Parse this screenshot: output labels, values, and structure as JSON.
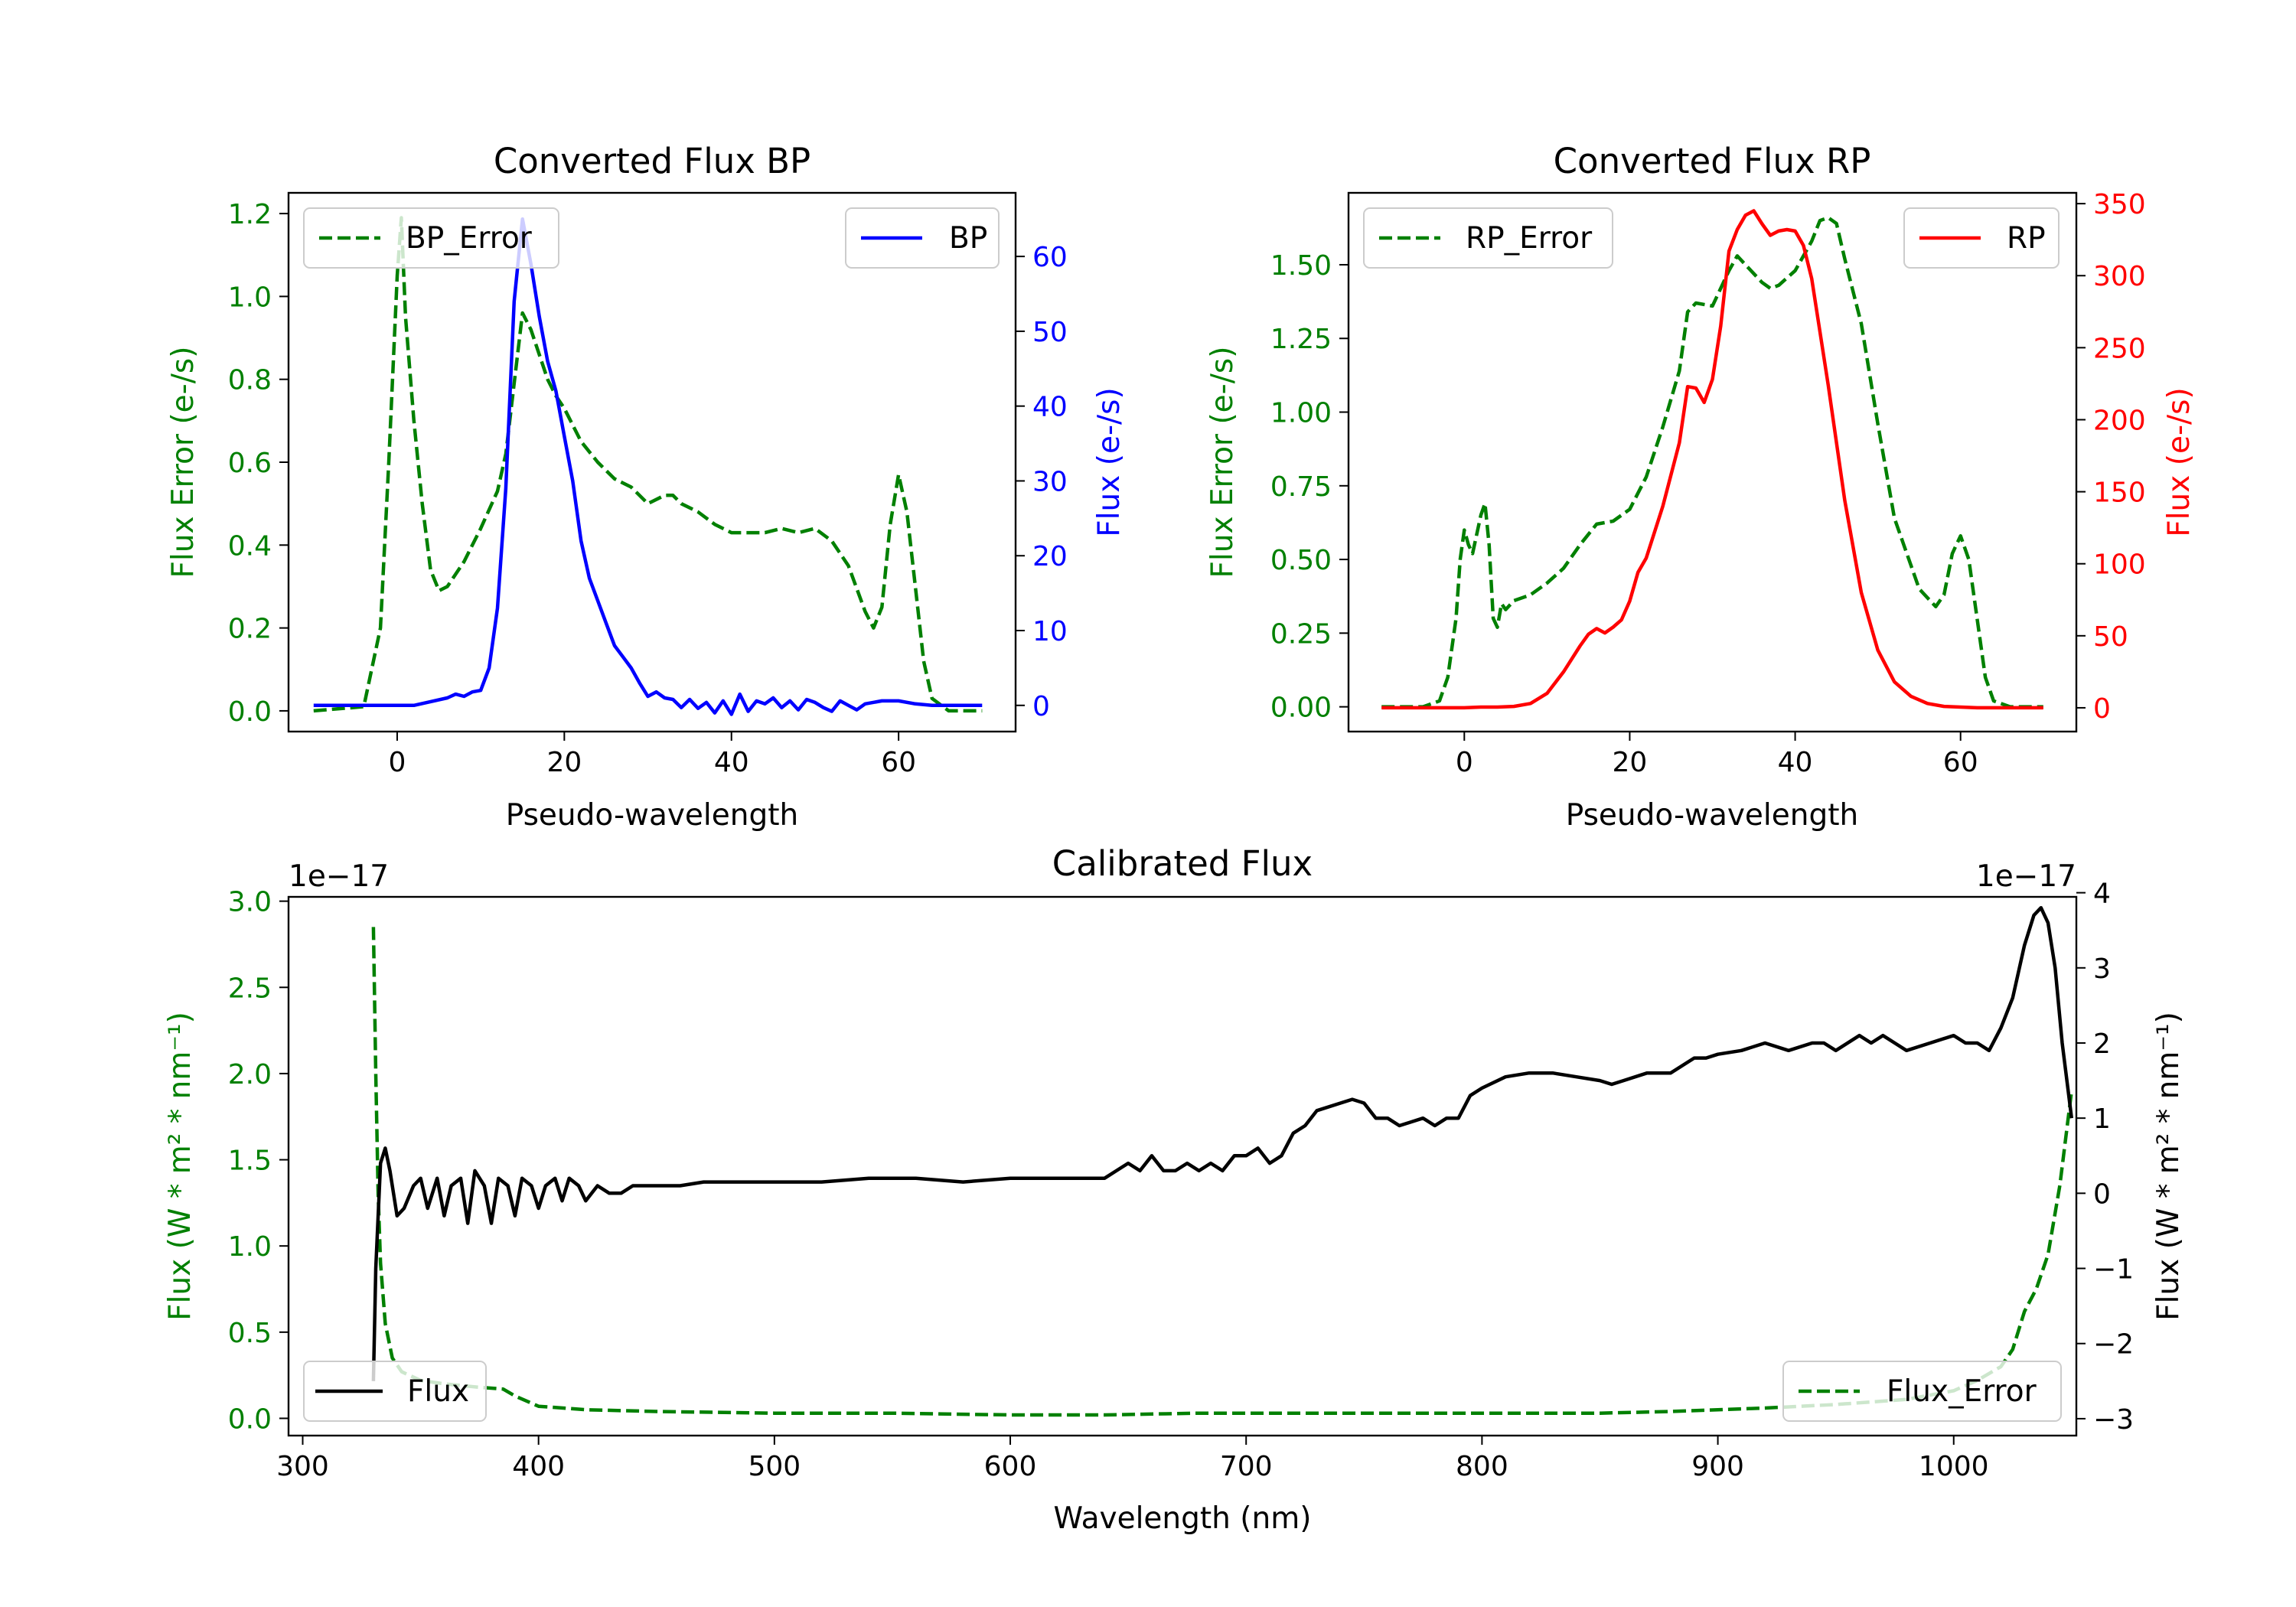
{
  "colors": {
    "bp": "#0000ff",
    "rp": "#ff0000",
    "error": "#008000",
    "flux": "#000000",
    "axes": "#000000"
  },
  "chart_data": [
    {
      "type": "line",
      "title": "Converted Flux BP",
      "xlabel": "Pseudo-wavelength",
      "ylabel_left": "Flux Error (e-/s)",
      "ylabel_right": "Flux (e-/s)",
      "xlim": [
        -13,
        74
      ],
      "ylim_left": [
        -0.05,
        1.25
      ],
      "ylim_right": [
        -3.5,
        68.5
      ],
      "xticks": [
        0,
        20,
        40,
        60
      ],
      "yticks_left": [
        0.0,
        0.2,
        0.4,
        0.6,
        0.8,
        1.0,
        1.2
      ],
      "yticks_left_labels": [
        "0.0",
        "0.2",
        "0.4",
        "0.6",
        "0.8",
        "1.0",
        "1.2"
      ],
      "yticks_right": [
        0,
        10,
        20,
        30,
        40,
        50,
        60
      ],
      "yticks_right_labels": [
        "0",
        "10",
        "20",
        "30",
        "40",
        "50",
        "60"
      ],
      "legend_left": "BP_Error",
      "legend_right": "BP",
      "series": [
        {
          "name": "BP_Error",
          "axis": "left",
          "style": "dashed",
          "color_key": "error",
          "x": [
            -10,
            -4,
            -2,
            -1,
            0,
            0.5,
            1,
            2,
            3,
            4,
            5,
            6,
            8,
            10,
            12,
            13,
            14,
            15,
            16,
            17,
            18,
            19,
            20,
            22,
            24,
            26,
            28,
            30,
            32,
            33,
            34,
            36,
            38,
            40,
            42,
            44,
            46,
            48,
            50,
            52,
            54,
            56,
            57,
            58,
            59,
            60,
            61,
            62,
            63,
            64,
            66,
            70
          ],
          "y": [
            0.0,
            0.01,
            0.2,
            0.6,
            1.05,
            1.19,
            0.95,
            0.7,
            0.5,
            0.34,
            0.29,
            0.3,
            0.36,
            0.44,
            0.53,
            0.62,
            0.79,
            0.96,
            0.92,
            0.86,
            0.8,
            0.76,
            0.73,
            0.65,
            0.6,
            0.56,
            0.54,
            0.5,
            0.52,
            0.52,
            0.5,
            0.48,
            0.45,
            0.43,
            0.43,
            0.43,
            0.44,
            0.43,
            0.44,
            0.41,
            0.35,
            0.24,
            0.2,
            0.25,
            0.45,
            0.57,
            0.48,
            0.3,
            0.12,
            0.03,
            0.0,
            0.0
          ]
        },
        {
          "name": "BP",
          "axis": "right",
          "style": "solid",
          "color_key": "bp",
          "x": [
            -10,
            -6,
            -2,
            0,
            2,
            4,
            6,
            7,
            8,
            9,
            10,
            11,
            12,
            13,
            14,
            15,
            16,
            17,
            18,
            19,
            20,
            21,
            22,
            23,
            24,
            25,
            26,
            27,
            28,
            29,
            30,
            31,
            32,
            33,
            34,
            35,
            36,
            37,
            38,
            39,
            40,
            41,
            42,
            43,
            44,
            45,
            46,
            47,
            48,
            49,
            50,
            51,
            52,
            53,
            54,
            55,
            56,
            58,
            60,
            62,
            64,
            66,
            68,
            70
          ],
          "y": [
            0,
            0,
            0,
            0,
            0,
            0.5,
            1,
            1.5,
            1.2,
            1.8,
            2,
            5,
            13,
            29,
            54,
            65,
            59,
            52,
            46,
            42,
            36,
            30,
            22,
            17,
            14,
            11,
            8,
            6.5,
            5,
            3,
            1.2,
            1.8,
            1,
            0.8,
            -0.3,
            0.8,
            -0.4,
            0.4,
            -1,
            0.6,
            -1.2,
            1.5,
            -0.8,
            0.6,
            0.2,
            1,
            -0.3,
            0.6,
            -0.6,
            0.8,
            0.4,
            -0.3,
            -0.8,
            0.6,
            0,
            -0.6,
            0.2,
            0.6,
            0.6,
            0.2,
            0,
            0,
            0,
            0
          ]
        }
      ]
    },
    {
      "type": "line",
      "title": "Converted Flux RP",
      "xlabel": "Pseudo-wavelength",
      "ylabel_left": "Flux Error (e-/s)",
      "ylabel_right": "Flux (e-/s)",
      "xlim": [
        -14,
        74
      ],
      "ylim_left": [
        -0.084,
        1.744
      ],
      "ylim_right": [
        -16.5,
        357.5
      ],
      "xticks": [
        0,
        20,
        40,
        60
      ],
      "yticks_left": [
        0.0,
        0.25,
        0.5,
        0.75,
        1.0,
        1.25,
        1.5
      ],
      "yticks_left_labels": [
        "0.00",
        "0.25",
        "0.50",
        "0.75",
        "1.00",
        "1.25",
        "1.50"
      ],
      "yticks_right": [
        0,
        50,
        100,
        150,
        200,
        250,
        300,
        350
      ],
      "yticks_right_labels": [
        "0",
        "50",
        "100",
        "150",
        "200",
        "250",
        "300",
        "350"
      ],
      "legend_left": "RP_Error",
      "legend_right": "RP",
      "series": [
        {
          "name": "RP_Error",
          "axis": "left",
          "style": "dashed",
          "color_key": "error",
          "x": [
            -10,
            -5,
            -3,
            -2,
            -1,
            -0.5,
            0,
            0.5,
            1,
            2,
            2.5,
            3,
            3.5,
            4,
            4.5,
            5,
            6,
            8,
            10,
            12,
            14,
            16,
            18,
            20,
            22,
            24,
            26,
            27,
            28,
            30,
            32,
            33,
            34,
            36,
            37,
            38,
            40,
            42,
            43,
            44,
            45,
            46,
            48,
            50,
            52,
            54,
            55,
            56,
            57,
            58,
            59,
            60,
            61,
            62,
            63,
            64,
            66,
            70
          ],
          "y": [
            0.0,
            0.0,
            0.02,
            0.1,
            0.3,
            0.5,
            0.6,
            0.55,
            0.52,
            0.65,
            0.69,
            0.55,
            0.3,
            0.27,
            0.35,
            0.33,
            0.36,
            0.38,
            0.42,
            0.47,
            0.55,
            0.62,
            0.63,
            0.67,
            0.78,
            0.95,
            1.14,
            1.34,
            1.37,
            1.36,
            1.48,
            1.53,
            1.5,
            1.44,
            1.42,
            1.43,
            1.48,
            1.58,
            1.65,
            1.66,
            1.64,
            1.52,
            1.3,
            0.96,
            0.64,
            0.48,
            0.4,
            0.37,
            0.34,
            0.38,
            0.52,
            0.58,
            0.5,
            0.3,
            0.1,
            0.02,
            0.0,
            0.0
          ]
        },
        {
          "name": "RP",
          "axis": "right",
          "style": "solid",
          "color_key": "rp",
          "x": [
            -10,
            -5,
            0,
            2,
            4,
            6,
            8,
            10,
            12,
            14,
            15,
            16,
            17,
            18,
            19,
            20,
            21,
            22,
            24,
            26,
            27,
            28,
            29,
            30,
            31,
            32,
            33,
            34,
            35,
            36,
            37,
            38,
            39,
            40,
            41,
            42,
            44,
            46,
            48,
            50,
            52,
            54,
            56,
            58,
            60,
            62,
            64,
            66,
            70
          ],
          "y": [
            0,
            0,
            0,
            0.5,
            0.5,
            1,
            3,
            10,
            25,
            43,
            51,
            55,
            52,
            56,
            61,
            74,
            94,
            104,
            140,
            184,
            223,
            222,
            212,
            228,
            265,
            317,
            332,
            342,
            345,
            336,
            328,
            331,
            332,
            331,
            321,
            298,
            224,
            144,
            80,
            40,
            18,
            8,
            3,
            1,
            0.5,
            0,
            0,
            0,
            0
          ]
        }
      ]
    },
    {
      "type": "line",
      "title": "Calibrated Flux",
      "xlabel": "Wavelength (nm)",
      "ylabel_left": "Flux (W * m² * nm⁻¹)",
      "ylabel_right": "Flux (W * m² * nm⁻¹)",
      "offset_left": "1e−17",
      "offset_right": "1e−17",
      "xlim": [
        294,
        1052
      ],
      "ylim_left": [
        -0.1,
        3.025
      ],
      "ylim_right": [
        -3.225,
        3.945
      ],
      "xticks": [
        300,
        400,
        500,
        600,
        700,
        800,
        900,
        1000
      ],
      "yticks_left": [
        0.0,
        0.5,
        1.0,
        1.5,
        2.0,
        2.5,
        3.0
      ],
      "yticks_left_labels": [
        "0.0",
        "0.5",
        "1.0",
        "1.5",
        "2.0",
        "2.5",
        "3.0"
      ],
      "yticks_right": [
        -3,
        -2,
        -1,
        0,
        1,
        2,
        3,
        4
      ],
      "yticks_right_labels": [
        "−3",
        "−2",
        "−1",
        "0",
        "1",
        "2",
        "3",
        "4"
      ],
      "legend_left": "Flux",
      "legend_right": "Flux_Error",
      "series": [
        {
          "name": "Flux_Error",
          "axis": "left",
          "style": "dashed",
          "color_key": "error",
          "x": [
            330,
            331,
            332,
            333,
            335,
            338,
            342,
            350,
            360,
            375,
            385,
            390,
            400,
            420,
            450,
            500,
            550,
            600,
            640,
            680,
            700,
            750,
            800,
            850,
            880,
            900,
            920,
            950,
            980,
            1000,
            1010,
            1020,
            1025,
            1030,
            1035,
            1040,
            1045,
            1050
          ],
          "y": [
            2.85,
            2.0,
            1.3,
            0.9,
            0.55,
            0.35,
            0.27,
            0.22,
            0.2,
            0.18,
            0.17,
            0.13,
            0.07,
            0.05,
            0.04,
            0.03,
            0.03,
            0.02,
            0.02,
            0.03,
            0.03,
            0.03,
            0.03,
            0.03,
            0.04,
            0.05,
            0.06,
            0.08,
            0.11,
            0.16,
            0.22,
            0.3,
            0.4,
            0.62,
            0.75,
            0.95,
            1.35,
            1.9
          ]
        },
        {
          "name": "Flux",
          "axis": "right",
          "style": "solid",
          "color_key": "flux",
          "x": [
            330,
            331,
            333,
            335,
            337,
            340,
            343,
            347,
            350,
            353,
            357,
            360,
            363,
            367,
            370,
            373,
            377,
            380,
            383,
            387,
            390,
            393,
            397,
            400,
            403,
            407,
            410,
            413,
            417,
            420,
            425,
            430,
            435,
            440,
            450,
            460,
            470,
            480,
            500,
            520,
            540,
            560,
            580,
            600,
            620,
            640,
            645,
            650,
            655,
            660,
            665,
            670,
            675,
            680,
            685,
            690,
            695,
            700,
            705,
            710,
            715,
            720,
            725,
            730,
            740,
            745,
            750,
            755,
            760,
            765,
            770,
            775,
            780,
            785,
            790,
            795,
            800,
            810,
            820,
            830,
            840,
            850,
            855,
            860,
            870,
            880,
            890,
            895,
            900,
            910,
            920,
            930,
            940,
            945,
            950,
            960,
            965,
            970,
            975,
            980,
            990,
            1000,
            1005,
            1010,
            1015,
            1020,
            1025,
            1030,
            1034,
            1037,
            1040,
            1043,
            1046,
            1050
          ],
          "y": [
            -2.5,
            -1,
            0.4,
            0.6,
            0.3,
            -0.3,
            -0.2,
            0.1,
            0.2,
            -0.2,
            0.2,
            -0.3,
            0.1,
            0.2,
            -0.4,
            0.3,
            0.1,
            -0.4,
            0.2,
            0.1,
            -0.3,
            0.2,
            0.1,
            -0.2,
            0.1,
            0.2,
            -0.1,
            0.2,
            0.1,
            -0.1,
            0.1,
            0.0,
            0.0,
            0.1,
            0.1,
            0.1,
            0.15,
            0.15,
            0.15,
            0.15,
            0.2,
            0.2,
            0.15,
            0.2,
            0.2,
            0.2,
            0.3,
            0.4,
            0.3,
            0.5,
            0.3,
            0.3,
            0.4,
            0.3,
            0.4,
            0.3,
            0.5,
            0.5,
            0.6,
            0.4,
            0.5,
            0.8,
            0.9,
            1.1,
            1.2,
            1.25,
            1.2,
            1.0,
            1.0,
            0.9,
            0.95,
            1.0,
            0.9,
            1.0,
            1.0,
            1.3,
            1.4,
            1.55,
            1.6,
            1.6,
            1.55,
            1.5,
            1.45,
            1.5,
            1.6,
            1.6,
            1.8,
            1.8,
            1.85,
            1.9,
            2.0,
            1.9,
            2.0,
            2.0,
            1.9,
            2.1,
            2.0,
            2.1,
            2.0,
            1.9,
            2.0,
            2.1,
            2.0,
            2.0,
            1.9,
            2.2,
            2.6,
            3.3,
            3.7,
            3.8,
            3.6,
            3.0,
            2.0,
            1.0
          ]
        }
      ]
    }
  ]
}
